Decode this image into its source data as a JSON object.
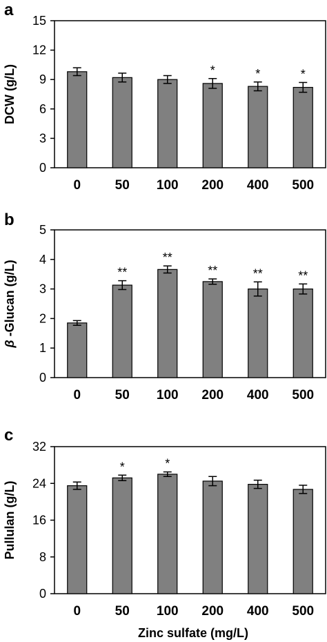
{
  "figure": {
    "xlabel": "Zinc sulfate (mg/L)"
  },
  "colors": {
    "bar": "#808080",
    "axis": "#000000",
    "background": "#ffffff"
  },
  "chart_data": [
    {
      "type": "bar",
      "panel": "a",
      "ylabel": "DCW (g/L)",
      "ylim": [
        0,
        15
      ],
      "yticks": [
        0,
        3,
        6,
        9,
        12,
        15
      ],
      "categories": [
        "0",
        "50",
        "100",
        "200",
        "400",
        "500"
      ],
      "values": [
        9.8,
        9.2,
        9.0,
        8.6,
        8.3,
        8.2
      ],
      "errors": [
        0.4,
        0.45,
        0.4,
        0.5,
        0.45,
        0.5
      ],
      "significance": [
        "",
        "",
        "",
        "*",
        "*",
        "*"
      ],
      "grid": false
    },
    {
      "type": "bar",
      "panel": "b",
      "ylabel_prefix": "β",
      "ylabel": "-Glucan (g/L)",
      "ylim": [
        0,
        5
      ],
      "yticks": [
        0,
        1,
        2,
        3,
        4,
        5
      ],
      "categories": [
        "0",
        "50",
        "100",
        "200",
        "400",
        "500"
      ],
      "values": [
        1.85,
        3.13,
        3.66,
        3.25,
        3.0,
        3.0
      ],
      "errors": [
        0.08,
        0.15,
        0.12,
        0.09,
        0.24,
        0.17
      ],
      "significance": [
        "",
        "**",
        "**",
        "**",
        "**",
        "**"
      ],
      "grid": false
    },
    {
      "type": "bar",
      "panel": "c",
      "ylabel": "Pullulan (g/L)",
      "ylim": [
        0,
        32
      ],
      "yticks": [
        0,
        8,
        16,
        24,
        32
      ],
      "categories": [
        "0",
        "50",
        "100",
        "200",
        "400",
        "500"
      ],
      "values": [
        23.5,
        25.2,
        26.0,
        24.5,
        23.8,
        22.7
      ],
      "errors": [
        0.8,
        0.6,
        0.5,
        1.0,
        0.9,
        0.9
      ],
      "significance": [
        "",
        "*",
        "*",
        "",
        "",
        ""
      ],
      "grid": false
    }
  ]
}
